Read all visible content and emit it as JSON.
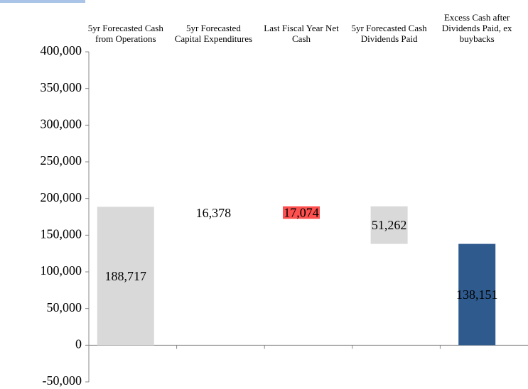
{
  "chart_data": {
    "type": "waterfall",
    "categories": [
      "5yr Forecasted Cash from Operations",
      "5yr Forecasted Capital Expenditures",
      "Last Fiscal Year Net Cash",
      "5yr Forecasted Cash Dividends Paid",
      "Excess Cash after Dividends Paid, ex buybacks"
    ],
    "values": [
      188717,
      16378,
      17074,
      51262,
      138151
    ],
    "value_labels": [
      "188,717",
      "16,378",
      "17,074",
      "51,262",
      "138,151"
    ],
    "directions": [
      "total",
      "decrease",
      "increase",
      "decrease",
      "total"
    ],
    "colors": [
      "#d9d9d9",
      "#ffffff",
      "#ff5050",
      "#d9d9d9",
      "#2f5a8e"
    ],
    "ylim": [
      -50000,
      400000
    ],
    "yticks": [
      {
        "value": -50000,
        "label": "-50,000"
      },
      0,
      {
        "value": 50000,
        "label": "50,000"
      },
      {
        "value": 100000,
        "label": "100,000"
      },
      {
        "value": 150000,
        "label": "150,000"
      },
      {
        "value": 200000,
        "label": "200,000"
      },
      {
        "value": 250000,
        "label": "250,000"
      },
      {
        "value": 300000,
        "label": "300,000"
      },
      {
        "value": 350000,
        "label": "350,000"
      },
      {
        "value": 400000,
        "label": "400,000"
      }
    ],
    "grid": false
  }
}
